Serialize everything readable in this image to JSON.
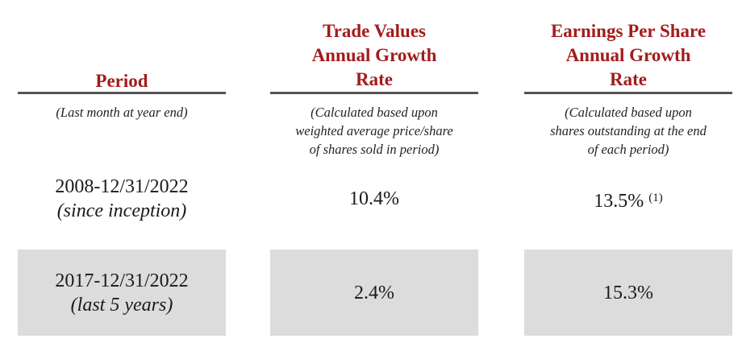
{
  "columns": [
    {
      "header": [
        "Period"
      ],
      "note": [
        "(Last month at year end)"
      ]
    },
    {
      "header": [
        "Trade Values",
        "Annual Growth",
        "Rate"
      ],
      "note": [
        "(Calculated based upon",
        "weighted average price/share",
        "of shares sold in period)"
      ]
    },
    {
      "header": [
        "Earnings Per Share",
        "Annual Growth",
        "Rate"
      ],
      "note": [
        "(Calculated based upon",
        "shares outstanding at the end",
        "of each period)"
      ]
    }
  ],
  "rows": [
    {
      "period": "2008-12/31/2022",
      "period_note": "(since inception)",
      "trade_value_growth": "10.4%",
      "eps_growth": "13.5%",
      "eps_footnote": "(1)"
    },
    {
      "period": "2017-12/31/2022",
      "period_note": "(last 5 years)",
      "trade_value_growth": "2.4%",
      "eps_growth": "15.3%"
    }
  ],
  "colors": {
    "header": "#a31c1c",
    "rule": "#555555",
    "shaded_row": "#dcdcdc"
  }
}
